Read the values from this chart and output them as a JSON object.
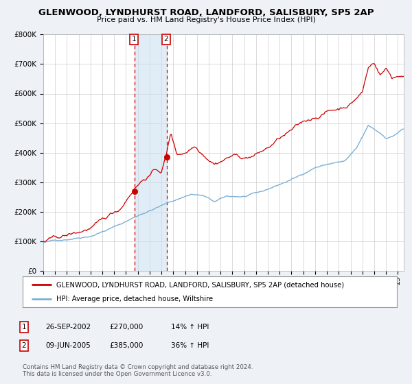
{
  "title": "GLENWOOD, LYNDHURST ROAD, LANDFORD, SALISBURY, SP5 2AP",
  "subtitle": "Price paid vs. HM Land Registry's House Price Index (HPI)",
  "legend_line1": "GLENWOOD, LYNDHURST ROAD, LANDFORD, SALISBURY, SP5 2AP (detached house)",
  "legend_line2": "HPI: Average price, detached house, Wiltshire",
  "table_rows": [
    {
      "num": "1",
      "date": "26-SEP-2002",
      "price": "£270,000",
      "hpi": "14% ↑ HPI"
    },
    {
      "num": "2",
      "date": "09-JUN-2005",
      "price": "£385,000",
      "hpi": "36% ↑ HPI"
    }
  ],
  "footer": "Contains HM Land Registry data © Crown copyright and database right 2024.\nThis data is licensed under the Open Government Licence v3.0.",
  "red_line_color": "#cc0000",
  "blue_line_color": "#7bafd4",
  "sale1_x": 2002.74,
  "sale1_y": 270000,
  "sale2_x": 2005.44,
  "sale2_y": 385000,
  "shade_x1": 2002.74,
  "shade_x2": 2005.44,
  "ylim": [
    0,
    800000
  ],
  "xlim_start": 1995.0,
  "xlim_end": 2025.5,
  "background_color": "#eef2f7",
  "plot_bg": "#ffffff",
  "grid_color": "#cccccc"
}
